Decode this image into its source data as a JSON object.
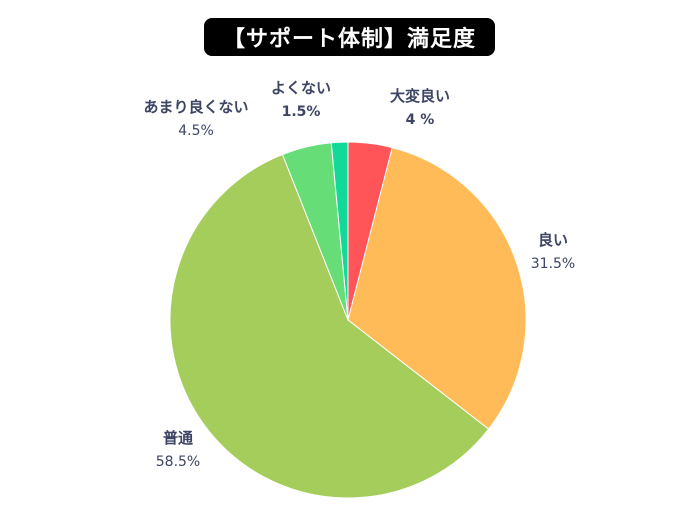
{
  "title": "【サポート体制】満足度",
  "chart_data": {
    "type": "pie",
    "title": "【サポート体制】満足度",
    "start_angle": "12 o'clock",
    "direction": "clockwise",
    "categories": [
      "大変良い",
      "良い",
      "普通",
      "あまり良くない",
      "よくない"
    ],
    "values": [
      4,
      31.5,
      58.5,
      4.5,
      1.5
    ],
    "value_labels": [
      "4 %",
      "31.5%",
      "58.5%",
      "4.5%",
      "1.5%"
    ],
    "colors": [
      "#ff5458",
      "#ffbb57",
      "#a5cd5c",
      "#66dd77",
      "#11d99a"
    ],
    "legend": "none (labels outside slices)"
  },
  "labels": [
    {
      "name": "大変良い",
      "value": "4 %"
    },
    {
      "name": "良い",
      "value": "31.5%"
    },
    {
      "name": "普通",
      "value": "58.5%"
    },
    {
      "name": "あまり良くない",
      "value": "4.5%"
    },
    {
      "name": "よくない",
      "value": "1.5%"
    }
  ]
}
